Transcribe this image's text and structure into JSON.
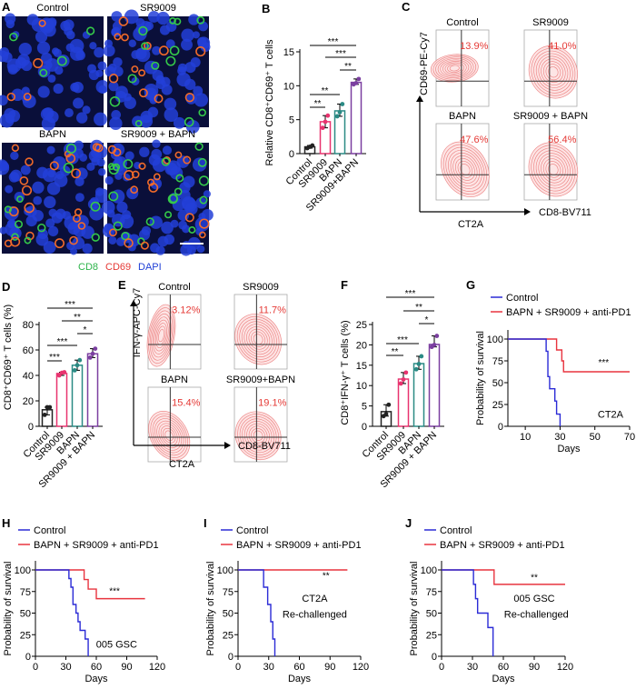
{
  "panel_letters": [
    "A",
    "B",
    "C",
    "D",
    "E",
    "F",
    "G",
    "H",
    "I",
    "J"
  ],
  "panel_a": {
    "images": [
      {
        "title": "Control"
      },
      {
        "title": "SR9009"
      },
      {
        "title": "BAPN"
      },
      {
        "title": "SR9009 + BAPN"
      }
    ],
    "legend": [
      {
        "text": "CD8",
        "color": "#2db34a"
      },
      {
        "text": "CD69",
        "color": "#e53935"
      },
      {
        "text": "DAPI",
        "color": "#1f3fd6"
      }
    ]
  },
  "panel_c": {
    "plots": [
      {
        "title": "Control",
        "percent": "13.9%"
      },
      {
        "title": "SR9009",
        "percent": "41.0%"
      },
      {
        "title": "BAPN",
        "percent": "47.6%"
      },
      {
        "title": "SR9009 + BAPN",
        "percent": "56.4%"
      }
    ],
    "y_label": "CD69-PE-Cy7",
    "x_label": "CD8-BV711",
    "model_label": "CT2A"
  },
  "panel_e": {
    "plots": [
      {
        "title": "Control",
        "percent": "3.12%"
      },
      {
        "title": "SR9009",
        "percent": "11.7%"
      },
      {
        "title": "BAPN",
        "percent": "15.4%"
      },
      {
        "title": "SR9009+BAPN",
        "percent": "19.1%"
      }
    ],
    "y_label": "IFN-γ-APC-Cy7",
    "x_label": "CD8-BV711",
    "model_label": "CT2A"
  },
  "colors": {
    "control": "#222222",
    "sr9009": "#e8336f",
    "bapn": "#2a8a84",
    "combo": "#7b3fa0",
    "survival_control": "#2b2bd6",
    "survival_treated": "#e8343f",
    "percent": "#e53935"
  },
  "chart_data": [
    {
      "id": "B",
      "type": "bar",
      "ylabel": "Relative CD8⁺CD69⁺ T cells",
      "ylim": [
        0,
        15
      ],
      "yticks": [
        "0",
        "5",
        "10",
        "15"
      ],
      "categories": [
        "Control",
        "SR9009",
        "BAPN",
        "SR9009+BAPN"
      ],
      "values": [
        1.0,
        4.7,
        6.3,
        10.5
      ],
      "points": [
        [
          0.8,
          1.0,
          1.2
        ],
        [
          3.8,
          4.7,
          5.6
        ],
        [
          5.5,
          6.1,
          7.3
        ],
        [
          10.2,
          10.4,
          11.0
        ]
      ],
      "significance": [
        {
          "from": 0,
          "to": 3,
          "label": "***"
        },
        {
          "from": 1,
          "to": 3,
          "label": "***"
        },
        {
          "from": 2,
          "to": 3,
          "label": "**"
        },
        {
          "from": 0,
          "to": 2,
          "label": "**"
        },
        {
          "from": 0,
          "to": 1,
          "label": "**"
        }
      ]
    },
    {
      "id": "D",
      "type": "bar",
      "ylabel": "CD8⁺CD69⁺ T cells (%)",
      "ylim": [
        0,
        80
      ],
      "yticks": [
        "0",
        "20",
        "40",
        "60",
        "80"
      ],
      "categories": [
        "Control",
        "SR9009",
        "BAPN",
        "SR9009 + BAPN"
      ],
      "values": [
        13,
        41.5,
        48,
        57
      ],
      "points": [
        [
          9,
          15,
          15
        ],
        [
          40,
          42,
          42.5
        ],
        [
          44,
          48,
          52
        ],
        [
          54,
          57,
          61
        ]
      ],
      "significance": [
        {
          "from": 0,
          "to": 3,
          "label": "***"
        },
        {
          "from": 1,
          "to": 3,
          "label": "**"
        },
        {
          "from": 2,
          "to": 3,
          "label": "*"
        },
        {
          "from": 0,
          "to": 2,
          "label": "***"
        },
        {
          "from": 0,
          "to": 1,
          "label": "***"
        }
      ]
    },
    {
      "id": "F",
      "type": "bar",
      "ylabel": "CD8⁺IFN-γ⁺ T cells (%)",
      "ylim": [
        0,
        25
      ],
      "yticks": [
        "0",
        "5",
        "10",
        "15",
        "20",
        "25"
      ],
      "categories": [
        "Control",
        "SR9009",
        "BAPN",
        "SR9009 + BAPN"
      ],
      "values": [
        3.6,
        11.6,
        15.4,
        20.1
      ],
      "points": [
        [
          2.5,
          3.0,
          5.3
        ],
        [
          10.5,
          11.5,
          13.2
        ],
        [
          14,
          15.3,
          17.2
        ],
        [
          19.5,
          20,
          22.2
        ]
      ],
      "significance": [
        {
          "from": 0,
          "to": 3,
          "label": "***"
        },
        {
          "from": 1,
          "to": 3,
          "label": "**"
        },
        {
          "from": 2,
          "to": 3,
          "label": "*"
        },
        {
          "from": 0,
          "to": 2,
          "label": "***"
        },
        {
          "from": 0,
          "to": 1,
          "label": "**"
        }
      ]
    },
    {
      "id": "G",
      "type": "line",
      "xlabel": "Days",
      "ylabel": "Probability of survival",
      "xlim": [
        0,
        70
      ],
      "ylim": [
        0,
        100
      ],
      "xticks": [
        "10",
        "30",
        "50",
        "70"
      ],
      "yticks": [
        "0",
        "25",
        "50",
        "75",
        "100"
      ],
      "legend": "top-left",
      "series": [
        {
          "name": "Control",
          "x": [
            0,
            22,
            23,
            24,
            27,
            28,
            30
          ],
          "y": [
            100,
            86,
            57,
            43,
            29,
            14,
            0
          ]
        },
        {
          "name": "BAPN + SR9009 + anti-PD1",
          "x": [
            0,
            28,
            31,
            32,
            70
          ],
          "y": [
            100,
            87.5,
            75,
            62.5,
            62.5
          ]
        }
      ],
      "annotations": [
        {
          "text": "***",
          "x": 55,
          "y": 70
        },
        {
          "text": "CT2A",
          "x": 59,
          "y": 10
        }
      ]
    },
    {
      "id": "H",
      "type": "line",
      "xlabel": "Days",
      "ylabel": "Probability of survival",
      "xlim": [
        0,
        120
      ],
      "ylim": [
        0,
        100
      ],
      "xticks": [
        "0",
        "30",
        "60",
        "90",
        "120"
      ],
      "yticks": [
        "0",
        "25",
        "50",
        "75",
        "100"
      ],
      "legend": "top-left",
      "series": [
        {
          "name": "Control",
          "x": [
            0,
            33,
            35,
            37,
            40,
            42,
            44,
            49,
            52
          ],
          "y": [
            100,
            90,
            80,
            60,
            50,
            40,
            30,
            20,
            0
          ]
        },
        {
          "name": "BAPN + SR9009 + anti-PD1",
          "x": [
            0,
            48,
            52,
            60,
            108
          ],
          "y": [
            100,
            88.9,
            77.8,
            66.7,
            66.7
          ]
        }
      ],
      "annotations": [
        {
          "text": "***",
          "x": 78,
          "y": 72
        },
        {
          "text": "005 GSC",
          "x": 80,
          "y": 10
        }
      ]
    },
    {
      "id": "I",
      "type": "line",
      "xlabel": "Days",
      "ylabel": "Probability of survival",
      "xlim": [
        0,
        120
      ],
      "ylim": [
        0,
        100
      ],
      "xticks": [
        "0",
        "30",
        "60",
        "90",
        "120"
      ],
      "yticks": [
        "0",
        "25",
        "50",
        "75",
        "100"
      ],
      "legend": "top-left",
      "series": [
        {
          "name": "Control",
          "x": [
            0,
            25,
            29,
            32,
            34,
            36
          ],
          "y": [
            100,
            80,
            60,
            40,
            20,
            0
          ]
        },
        {
          "name": "BAPN + SR9009 + anti-PD1",
          "x": [
            0,
            107
          ],
          "y": [
            100,
            100
          ]
        }
      ],
      "annotations": [
        {
          "text": "**",
          "x": 86,
          "y": 90
        },
        {
          "text": "CT2A",
          "x": 75,
          "y": 63
        },
        {
          "text": "Re-challenged",
          "x": 75,
          "y": 45
        }
      ]
    },
    {
      "id": "J",
      "type": "line",
      "xlabel": "Days",
      "ylabel": "Probability of survival",
      "xlim": [
        0,
        120
      ],
      "ylim": [
        0,
        100
      ],
      "xticks": [
        "0",
        "30",
        "60",
        "90",
        "120"
      ],
      "yticks": [
        "0",
        "25",
        "50",
        "75",
        "100"
      ],
      "legend": "top-left",
      "series": [
        {
          "name": "Control",
          "x": [
            0,
            31,
            33,
            35,
            45,
            50
          ],
          "y": [
            100,
            83.3,
            66.7,
            50,
            33.3,
            0
          ]
        },
        {
          "name": "BAPN + SR9009 + anti-PD1",
          "x": [
            0,
            51,
            120
          ],
          "y": [
            100,
            83.3,
            83.3
          ]
        }
      ],
      "annotations": [
        {
          "text": "**",
          "x": 90,
          "y": 88
        },
        {
          "text": "005 GSC",
          "x": 90,
          "y": 63
        },
        {
          "text": "Re-challenged",
          "x": 92,
          "y": 45
        }
      ]
    }
  ]
}
